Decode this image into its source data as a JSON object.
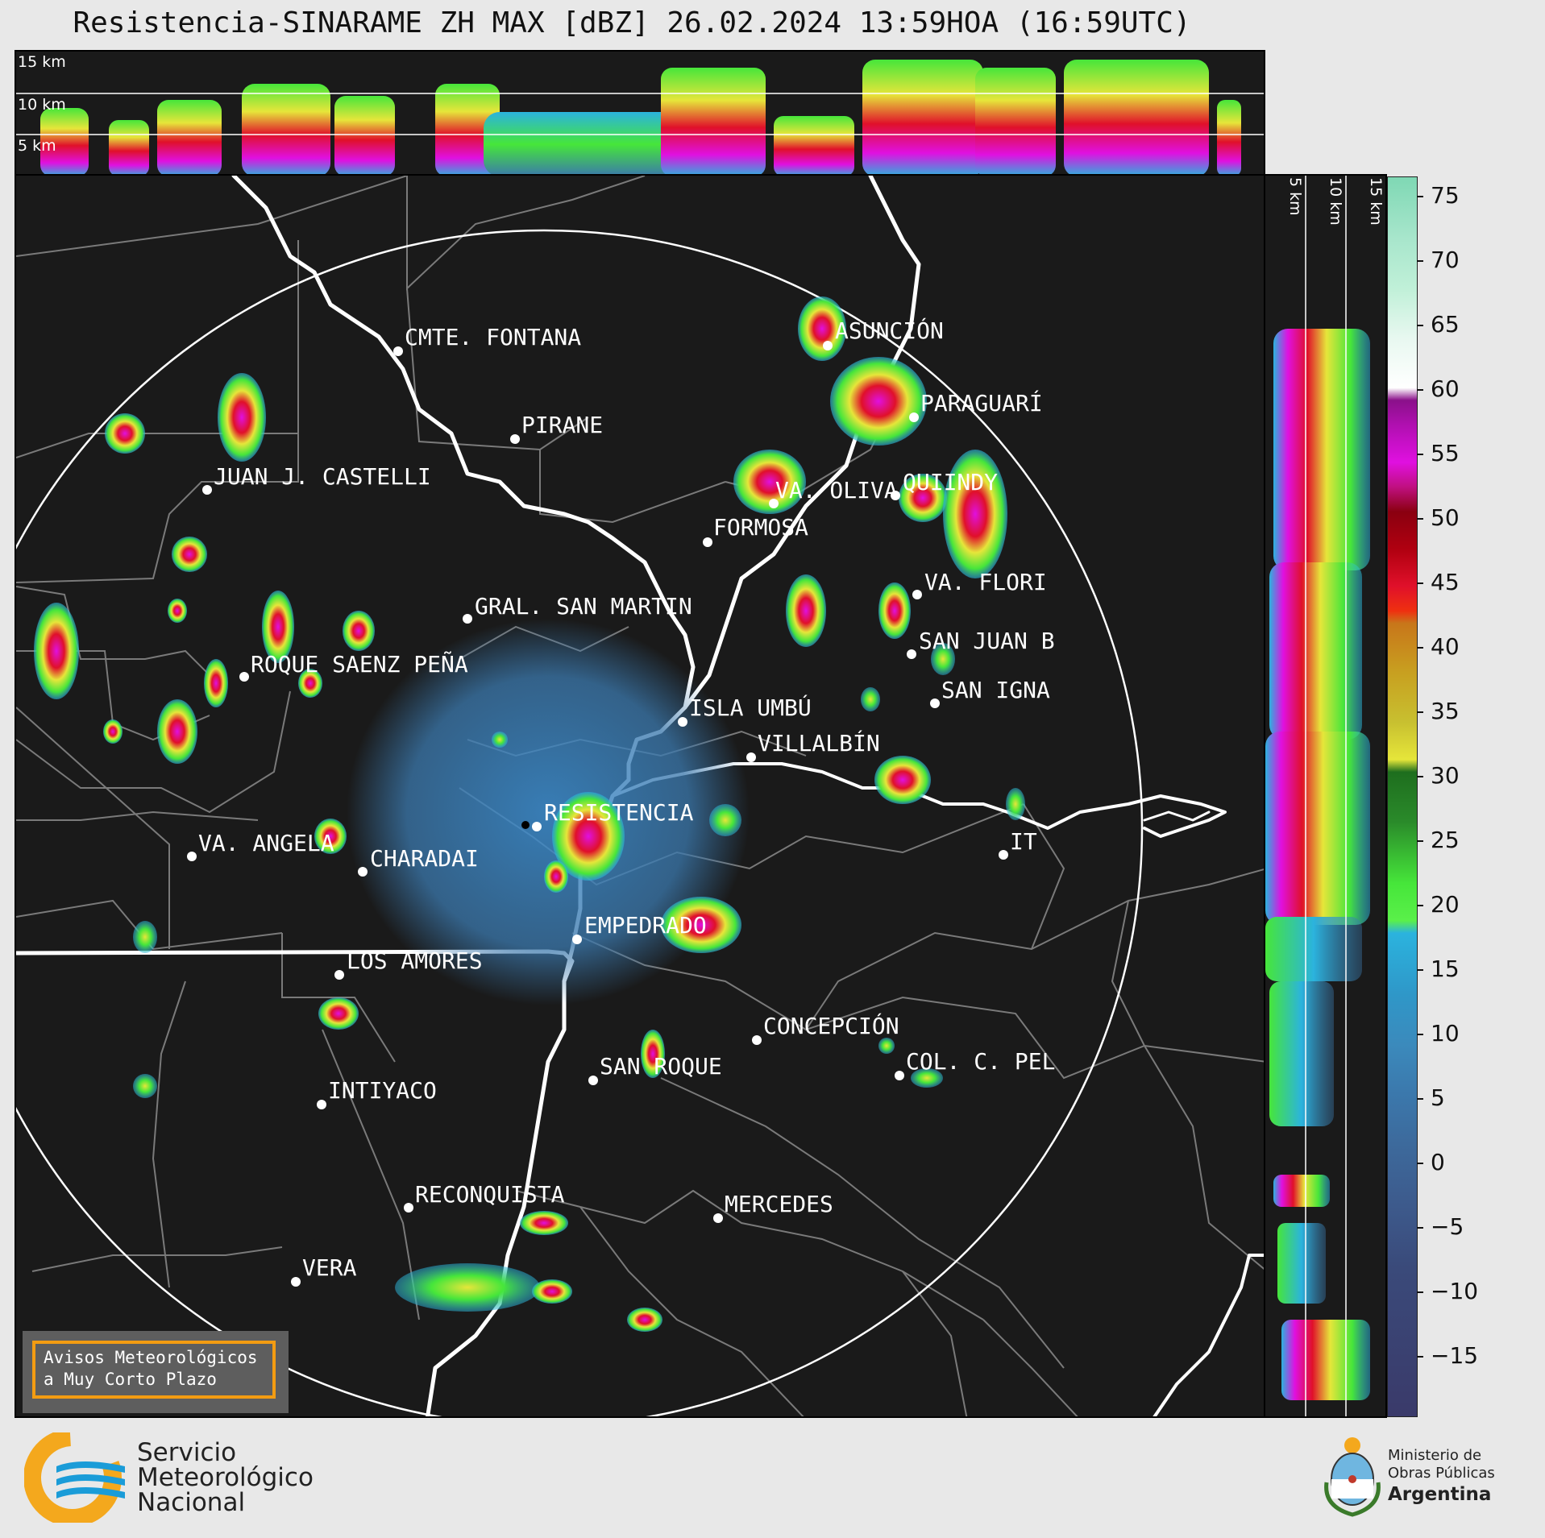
{
  "title": "Resistencia-SINARAME ZH MAX [dBZ] 26.02.2024 13:59HOA (16:59UTC)",
  "top_panel": {
    "altitude_labels": [
      "15 km",
      "10 km",
      "5 km"
    ]
  },
  "side_panel": {
    "altitude_labels": [
      "5 km",
      "10 km",
      "15 km"
    ]
  },
  "colorbar": {
    "unit": "dBZ",
    "ticks": [
      "75",
      "70",
      "65",
      "60",
      "55",
      "50",
      "45",
      "40",
      "35",
      "30",
      "25",
      "20",
      "15",
      "10",
      "5",
      "0",
      "−5",
      "−10",
      "−15"
    ],
    "range": [
      -20,
      77
    ],
    "colors": [
      "#3a3a6a",
      "#3d5a8c",
      "#3b78ac",
      "#2f97c8",
      "#2bb3de",
      "#46e63a",
      "#1e6e1e",
      "#e6e63a",
      "#c8a020",
      "#e0102a",
      "#8a0010",
      "#e010e0",
      "#8a108a",
      "#ffffff",
      "#c0f0d8",
      "#7fd8b4"
    ]
  },
  "map": {
    "cities": [
      {
        "name": "CMTE. FONTANA"
      },
      {
        "name": "ASUNCIÓN"
      },
      {
        "name": "PARAGUARÍ"
      },
      {
        "name": "PIRANE"
      },
      {
        "name": "JUAN J. CASTELLI"
      },
      {
        "name": "VA. OLIVA"
      },
      {
        "name": "QUIINDY"
      },
      {
        "name": "FORMOSA"
      },
      {
        "name": "VA. FLORI"
      },
      {
        "name": "GRAL. SAN MARTIN"
      },
      {
        "name": "SAN JUAN B"
      },
      {
        "name": "ROQUE SAENZ PEÑA"
      },
      {
        "name": "SAN IGNA"
      },
      {
        "name": "ISLA UMBÚ"
      },
      {
        "name": "VILLALBÍN"
      },
      {
        "name": "RESISTENCIA"
      },
      {
        "name": "VA. ANGELA"
      },
      {
        "name": "CHARADAI"
      },
      {
        "name": "IT"
      },
      {
        "name": "EMPEDRADO"
      },
      {
        "name": "LOS AMORES"
      },
      {
        "name": "CONCEPCIÓN"
      },
      {
        "name": "SAN ROQUE"
      },
      {
        "name": "COL. C. PEL"
      },
      {
        "name": "INTIYACO"
      },
      {
        "name": "RECONQUISTA"
      },
      {
        "name": "MERCEDES"
      },
      {
        "name": "VERA"
      }
    ]
  },
  "alerts": {
    "line1": "Avisos Meteorológicos",
    "line2": "a Muy Corto Plazo"
  },
  "footer": {
    "smn": [
      "Servicio",
      "Meteorológico",
      "Nacional"
    ],
    "ministry": [
      "Ministerio de",
      "Obras Públicas",
      "Argentina"
    ]
  }
}
